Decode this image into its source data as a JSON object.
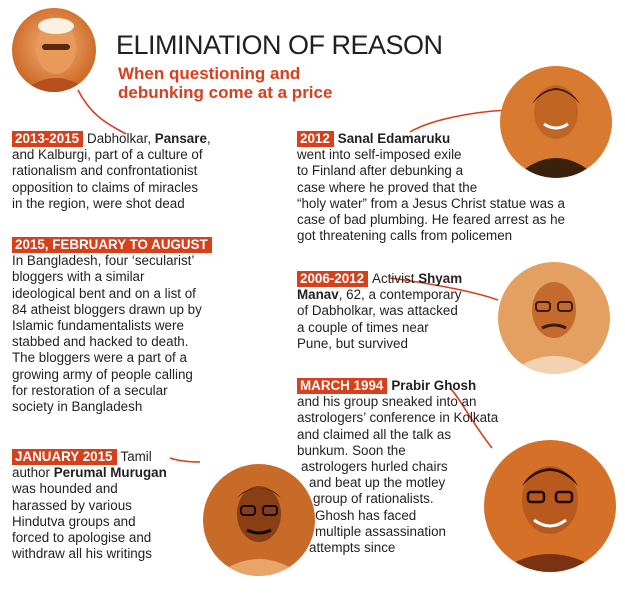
{
  "header": {
    "title": "ELIMINATION OF REASON",
    "subtitle": "When questioning and debunking come at a price"
  },
  "entries": [
    {
      "id": "pansare",
      "date": "2013-2015",
      "text_pre": "Dabholkar, ",
      "name": "Pansare",
      "text_mid": ",",
      "lines": [
        "and Kalburgi, part of a culture of",
        "rationalism and confrontationist",
        "opposition to claims of miracles",
        "in the region, were shot dead"
      ]
    },
    {
      "id": "bangladesh",
      "date": "2015, FEBRUARY TO AUGUST",
      "lines": [
        "In Bangladesh, four ‘secularist’",
        "bloggers with a similar",
        "ideological bent and on a list of",
        "84 atheist bloggers drawn up by",
        "Islamic fundamentalists were",
        "stabbed and hacked to death.",
        "The bloggers were a part of a",
        "growing army of people calling",
        "for restoration of a secular",
        "society in Bangladesh"
      ]
    },
    {
      "id": "murugan",
      "date": "JANUARY 2015",
      "first_word": "Tamil",
      "author_word": "author ",
      "name": "Perumal Murugan",
      "lines": [
        "was hounded and",
        "harassed by various",
        "Hindutva groups and",
        "forced to apologise and",
        "withdraw all his writings"
      ]
    },
    {
      "id": "edamaruku",
      "date": "2012",
      "name": "Sanal Edamaruku",
      "lines": [
        "went into self-imposed exile",
        "to Finland after debunking a",
        "case where he proved that the",
        "“holy water” from a Jesus Christ statue was a",
        "case of bad plumbing. He feared arrest as he",
        "got threatening calls from policemen"
      ]
    },
    {
      "id": "manav",
      "date": "2006-2012",
      "pre_name": "Activist ",
      "name_part1": "Shyam",
      "name_part2": "Manav",
      "after_name": ", 62, a contemporary",
      "lines": [
        "of Dabholkar, was attacked",
        "a couple of times near",
        "Pune, but survived"
      ]
    },
    {
      "id": "ghosh",
      "date": "MARCH 1994",
      "name": "Prabir Ghosh",
      "lines": [
        "and his group sneaked into an",
        "astrologers’ conference in Kolkata",
        "and claimed all the talk as",
        "bunkum. Soon the",
        "astrologers hurled chairs",
        "and beat up the motley",
        "group of rationalists.",
        "Ghosh has faced",
        "multiple assassination",
        "attempts since"
      ]
    }
  ],
  "colors": {
    "accent": "#d8401c",
    "photo_tint": "#e07a2a",
    "text": "#231f20"
  },
  "photos": [
    {
      "name": "pansare-photo"
    },
    {
      "name": "edamaruku-photo"
    },
    {
      "name": "manav-photo"
    },
    {
      "name": "murugan-photo"
    },
    {
      "name": "ghosh-photo"
    }
  ]
}
